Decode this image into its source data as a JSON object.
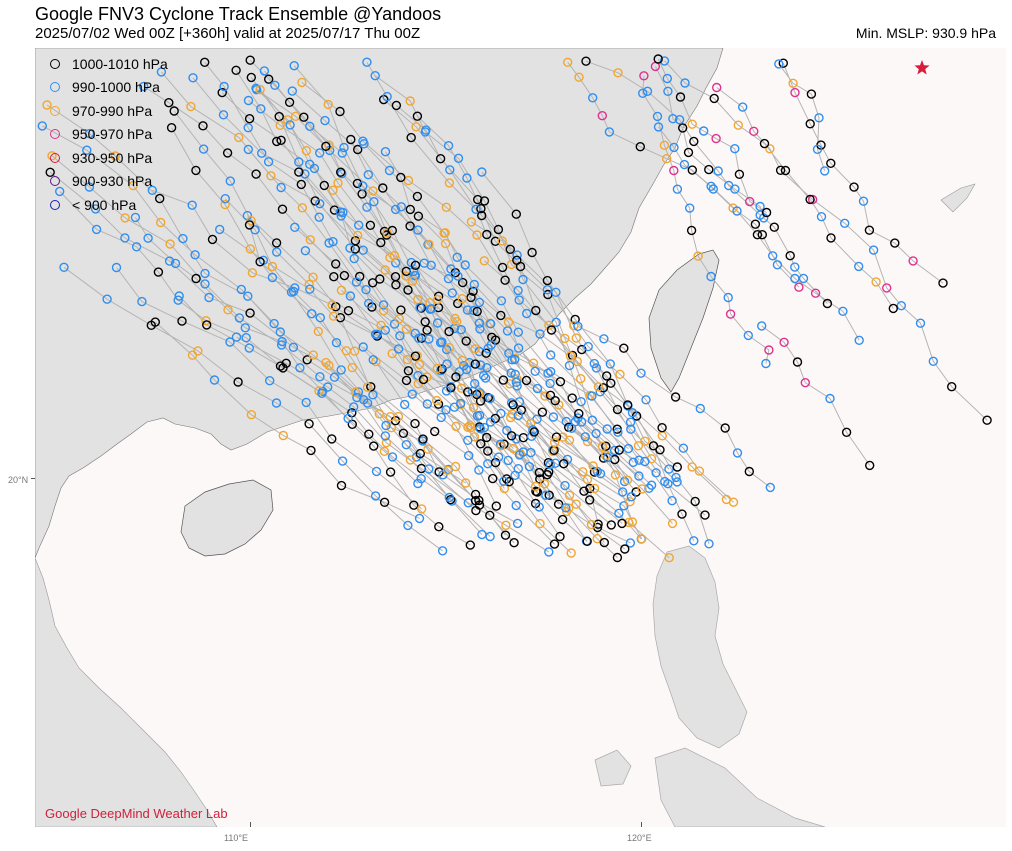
{
  "header": {
    "title": "Google FNV3 Cyclone Track Ensemble @Yandoos",
    "subtitle": "2025/07/02  Wed  00Z [+360h] valid at 2025/07/17  Thu  00Z",
    "min_mslp": "Min. MSLP: 930.9 hPa"
  },
  "legend": [
    {
      "label": "1000-1010 hPa",
      "color": "#000000"
    },
    {
      "label": "990-1000 hPa",
      "color": "#2f8ef0"
    },
    {
      "label": "970-990 hPa",
      "color": "#f2a630"
    },
    {
      "label": "950-970 hPa",
      "color": "#e0308f"
    },
    {
      "label": "930-950 hPa",
      "color": "#d81c3c"
    },
    {
      "label": "900-930 hPa",
      "color": "#5a1a8a"
    },
    {
      "label": "< 900 hPa",
      "color": "#1a23b8"
    }
  ],
  "axes": {
    "lon_labels": [
      "110°E",
      "120°E"
    ],
    "lat_labels": [
      "20°N"
    ]
  },
  "credit": "Google DeepMind Weather Lab",
  "colors": {
    "land": "#e2e2e2",
    "sea": "#fcf8f7",
    "track_line": "#b4b4b4",
    "storm_star": "#d81c3c"
  },
  "icons": {
    "current_position": "star-icon"
  }
}
